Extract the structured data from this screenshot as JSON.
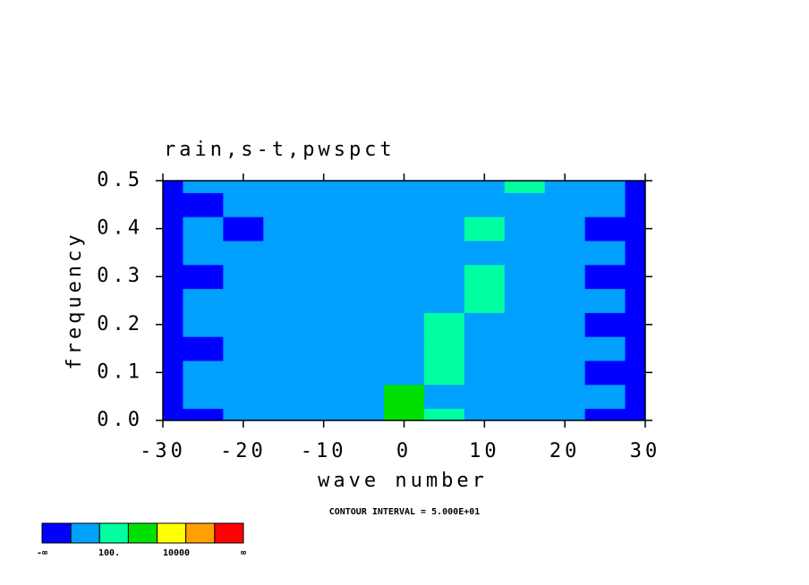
{
  "chart_data": {
    "type": "contour",
    "title": "rain,s-t,pwspct",
    "x_label": "wave number",
    "y_label": "frequency",
    "annotation": "CONTOUR INTERVAL = 5.000E+01",
    "xlim": [
      -30,
      30
    ],
    "xticks": [
      -30,
      -20,
      -10,
      0,
      10,
      20,
      30
    ],
    "ylim": [
      0,
      0.5
    ],
    "yticks": [
      {
        "value": 0,
        "label": "0.0"
      },
      0.1,
      0.2,
      0.3,
      0.4,
      0.5
    ],
    "x": [
      -30,
      -25,
      -20,
      -15,
      -10,
      -5,
      0,
      5,
      10,
      15,
      20,
      25,
      30
    ],
    "y": [
      0,
      0.05,
      0.1,
      0.15,
      0.2,
      0.25,
      0.3,
      0.35,
      0.4,
      0.45,
      0.5
    ],
    "z": [
      [
        30,
        30,
        70,
        70,
        70,
        70,
        160,
        120,
        70,
        70,
        70,
        30,
        30
      ],
      [
        30,
        70,
        70,
        70,
        70,
        90,
        150,
        70,
        70,
        70,
        70,
        70,
        30
      ],
      [
        30,
        70,
        70,
        70,
        70,
        70,
        70,
        120,
        70,
        70,
        70,
        30,
        30
      ],
      [
        30,
        30,
        70,
        70,
        70,
        70,
        70,
        110,
        70,
        70,
        70,
        70,
        30
      ],
      [
        30,
        70,
        70,
        70,
        70,
        70,
        70,
        130,
        70,
        70,
        70,
        30,
        30
      ],
      [
        30,
        70,
        70,
        70,
        70,
        70,
        70,
        70,
        120,
        70,
        70,
        70,
        30
      ],
      [
        30,
        30,
        70,
        70,
        70,
        70,
        70,
        70,
        140,
        70,
        70,
        30,
        30
      ],
      [
        30,
        70,
        70,
        70,
        70,
        70,
        70,
        70,
        90,
        70,
        70,
        70,
        30
      ],
      [
        30,
        70,
        30,
        70,
        70,
        70,
        70,
        70,
        130,
        70,
        70,
        30,
        30
      ],
      [
        30,
        30,
        70,
        70,
        70,
        70,
        70,
        70,
        90,
        70,
        70,
        70,
        30
      ],
      [
        30,
        70,
        70,
        70,
        70,
        70,
        70,
        70,
        70,
        130,
        70,
        70,
        30
      ]
    ],
    "levels": [
      50,
      100,
      150,
      200,
      250,
      300
    ],
    "colors": [
      "#0000ff",
      "#00a0ff",
      "#00ffa0",
      "#00e000",
      "#ffff00",
      "#ffa000",
      "#ff0000"
    ],
    "colorbar_labels": [
      "-∞",
      "100.",
      "10000",
      "∞"
    ]
  }
}
